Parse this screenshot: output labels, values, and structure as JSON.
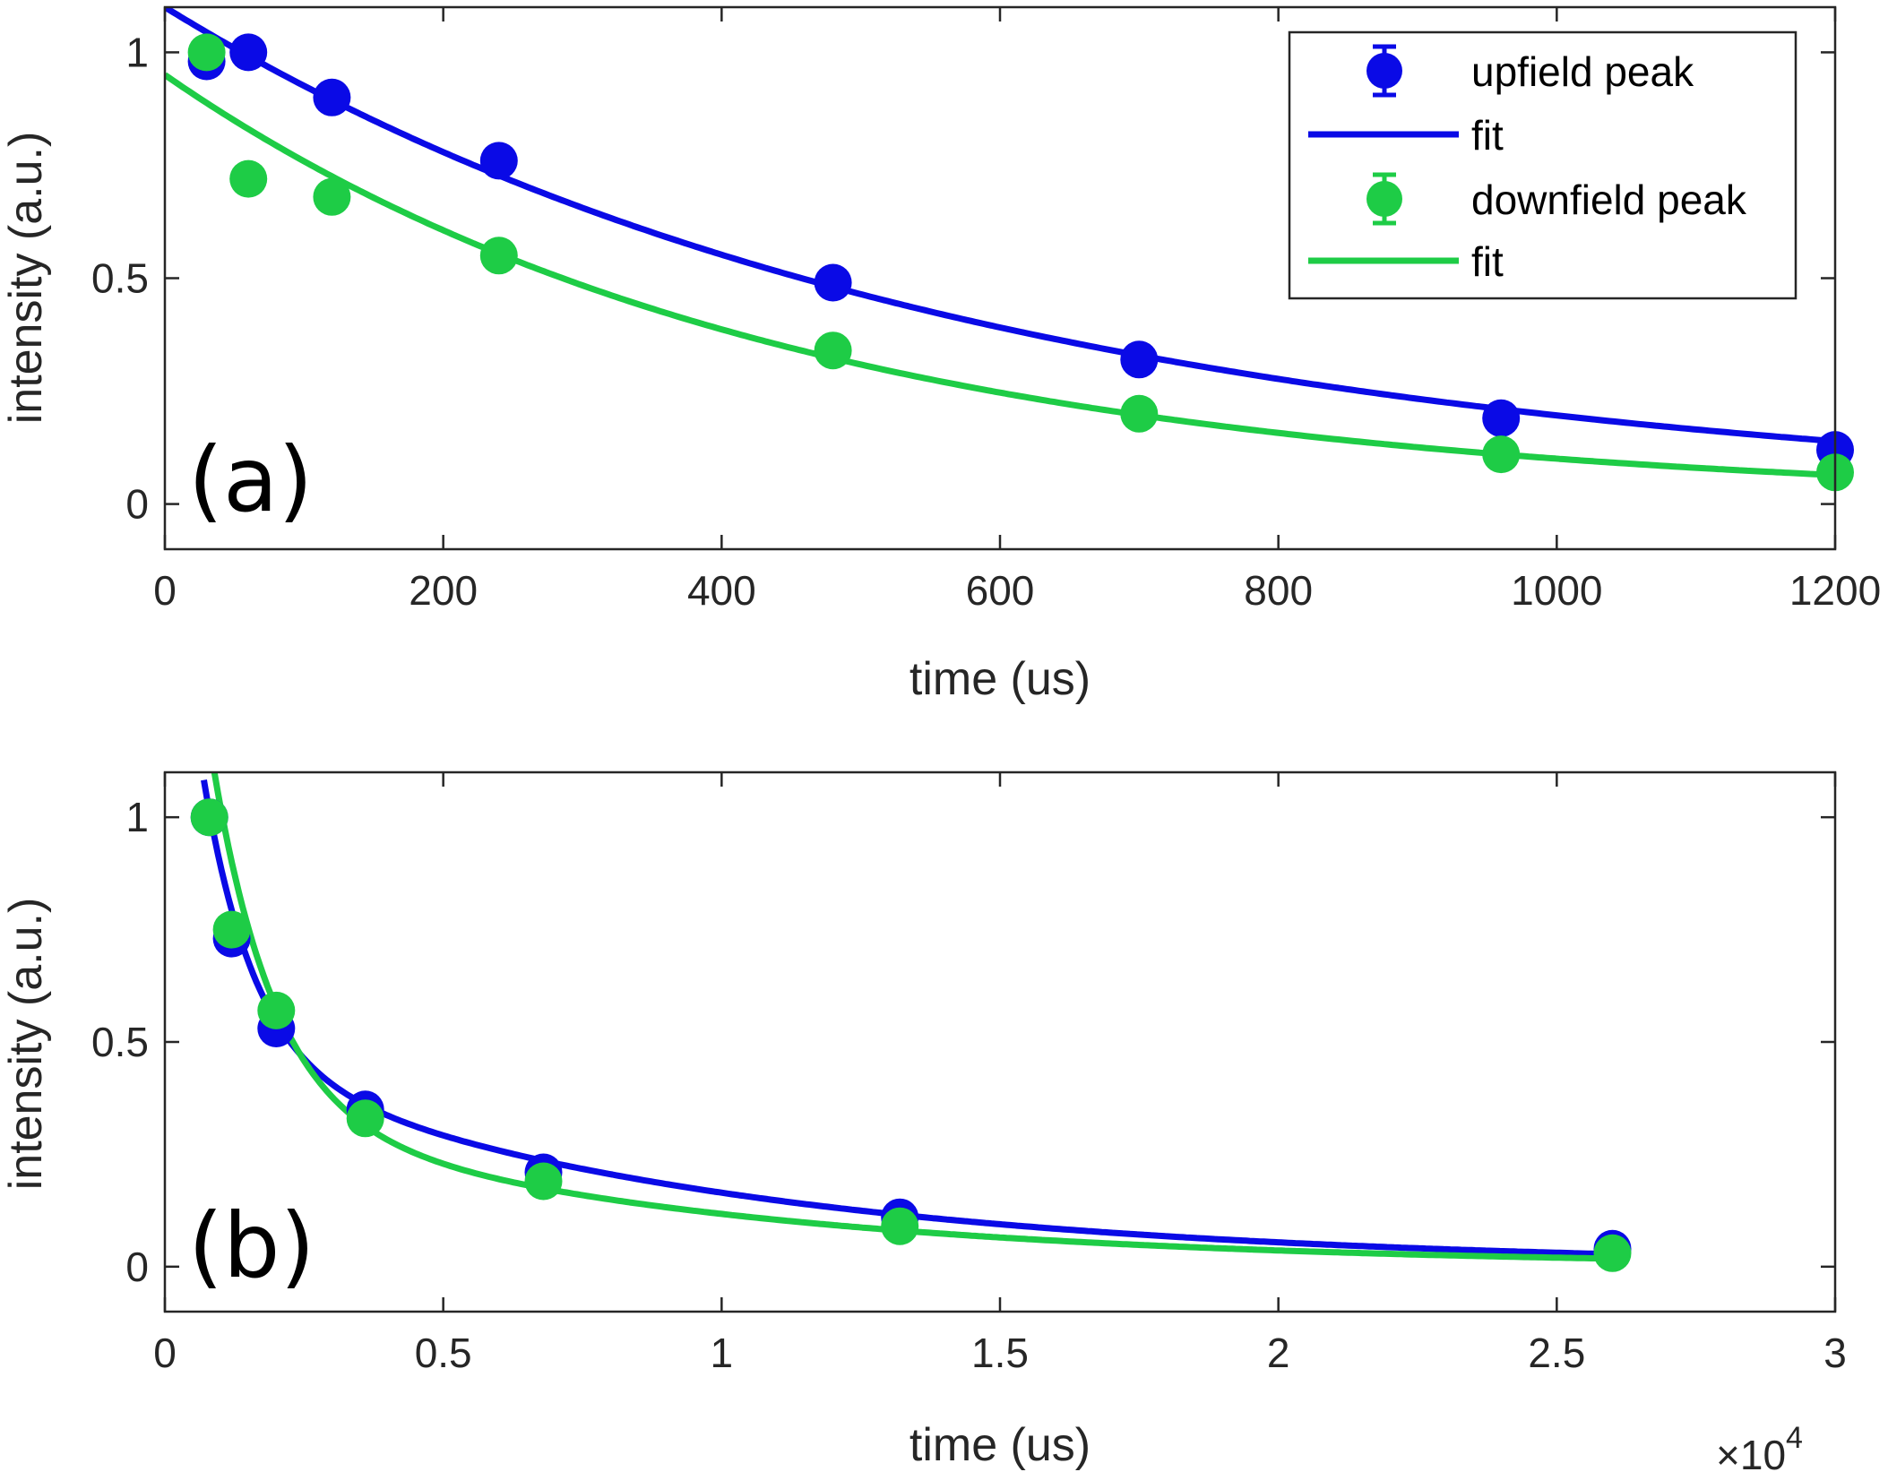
{
  "colors": {
    "upfield": "#0a0ae6",
    "downfield": "#1ecc46",
    "axis": "#262626"
  },
  "chart_data": [
    {
      "panel_label": "(a)",
      "type": "scatter",
      "xlabel": "time (us)",
      "ylabel": "intensity (a.u.)",
      "xlim": [
        0,
        1200
      ],
      "ylim": [
        -0.1,
        1.1
      ],
      "xticks": [
        0,
        200,
        400,
        600,
        800,
        1000,
        1200
      ],
      "xtick_labels": [
        "0",
        "200",
        "400",
        "600",
        "800",
        "1000",
        "1200"
      ],
      "yticks": [
        0,
        0.5,
        1
      ],
      "ytick_labels": [
        "0",
        "0.5",
        "1"
      ],
      "series": [
        {
          "name": "upfield peak",
          "color_key": "upfield",
          "x": [
            30,
            60,
            120,
            240,
            480,
            700,
            960,
            1200
          ],
          "y": [
            0.98,
            1.0,
            0.9,
            0.76,
            0.49,
            0.32,
            0.19,
            0.12
          ],
          "fit": {
            "a": 1.1,
            "tau": 580
          }
        },
        {
          "name": "downfield peak",
          "color_key": "downfield",
          "x": [
            30,
            60,
            120,
            240,
            480,
            700,
            960,
            1200
          ],
          "y": [
            1.0,
            0.72,
            0.68,
            0.55,
            0.34,
            0.2,
            0.11,
            0.07
          ],
          "fit": {
            "a": 0.95,
            "tau": 445
          }
        }
      ],
      "legend": {
        "entries": [
          "upfield peak",
          "fit",
          "downfield peak",
          "fit"
        ],
        "location": "top-right"
      }
    },
    {
      "panel_label": "(b)",
      "type": "scatter",
      "xlabel": "time (us)",
      "ylabel": "intensity (a.u.)",
      "x_multiplier": "×10",
      "x_multiplier_exp": "4",
      "xlim": [
        0,
        30000
      ],
      "ylim": [
        -0.1,
        1.1
      ],
      "xticks": [
        0,
        5000,
        10000,
        15000,
        20000,
        25000,
        30000
      ],
      "xtick_labels": [
        "0",
        "0.5",
        "1",
        "1.5",
        "2",
        "2.5",
        "3"
      ],
      "yticks": [
        0,
        0.5,
        1
      ],
      "ytick_labels": [
        "0",
        "0.5",
        "1"
      ],
      "series": [
        {
          "name": "upfield peak",
          "color_key": "upfield",
          "x": [
            800,
            1200,
            2000,
            3600,
            6800,
            13200,
            26000
          ],
          "y": [
            1.0,
            0.73,
            0.53,
            0.35,
            0.21,
            0.11,
            0.04
          ],
          "fit": {
            "a1": 1.35,
            "tau1": 900,
            "a2": 0.5,
            "tau2": 9000,
            "xstart": 700,
            "xend": 26000
          }
        },
        {
          "name": "downfield peak",
          "color_key": "downfield",
          "x": [
            800,
            1200,
            2000,
            3600,
            6800,
            13200,
            26000
          ],
          "y": [
            1.0,
            0.75,
            0.57,
            0.33,
            0.19,
            0.09,
            0.03
          ],
          "fit": {
            "a1": 1.7,
            "tau1": 1100,
            "a2": 0.38,
            "tau2": 8500,
            "xstart": 700,
            "xend": 26000
          }
        }
      ]
    }
  ]
}
